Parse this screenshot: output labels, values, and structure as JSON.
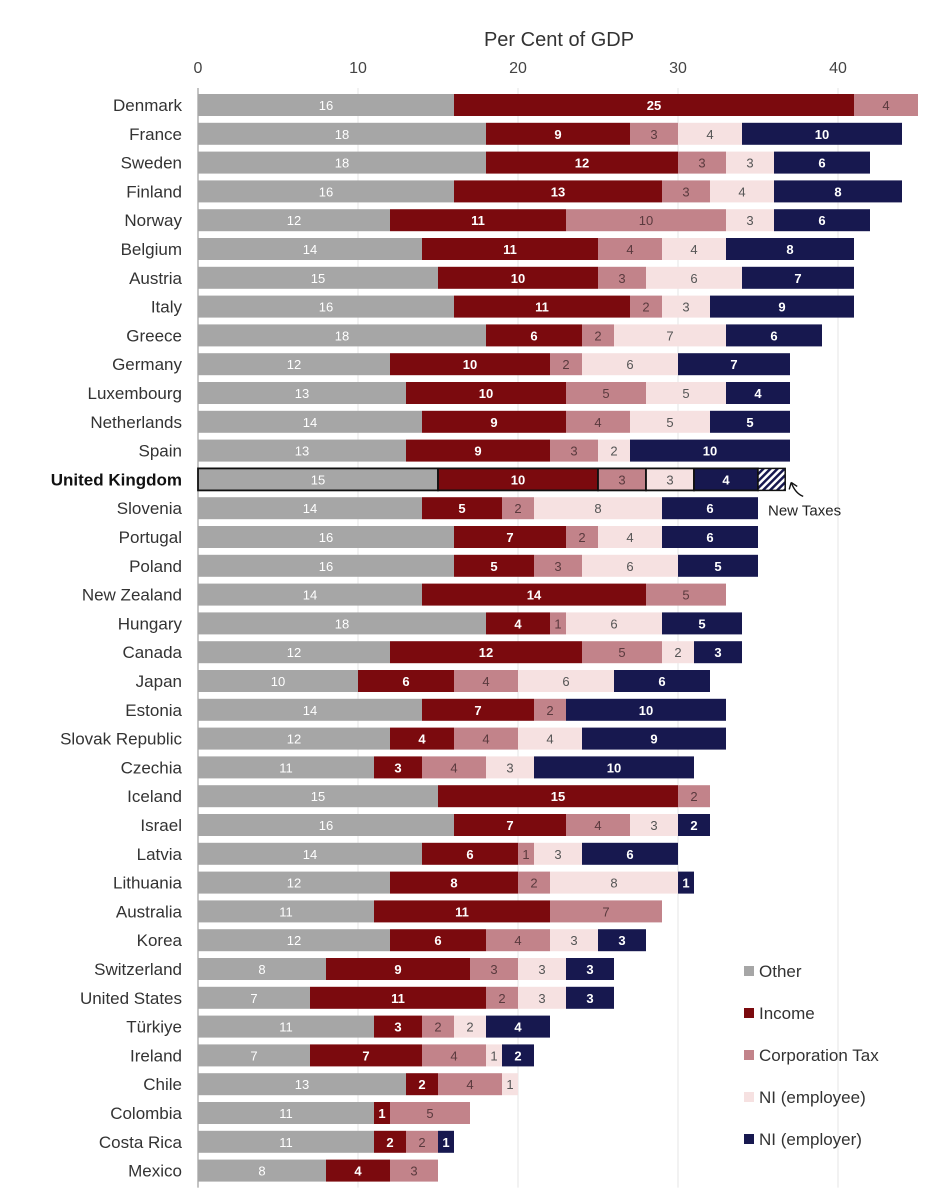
{
  "chart_data": {
    "type": "bar",
    "orientation": "horizontal",
    "stacked": true,
    "title": "Per Cent of GDP",
    "xlim": [
      0,
      45
    ],
    "xticks": [
      0,
      10,
      20,
      30,
      40
    ],
    "grid": true,
    "legend_position": "bottom-right",
    "highlight_category": "United Kingdom",
    "annotation": {
      "text": "New Taxes",
      "category": "United Kingdom",
      "value": 2
    },
    "series": [
      {
        "name": "Other",
        "color": "#a6a6a6",
        "label_color": "#ffffff"
      },
      {
        "name": "Income",
        "color": "#7b0a0e",
        "label_color": "#ffffff"
      },
      {
        "name": "Corporation Tax",
        "color": "#c2838a",
        "label_color": "#5a3a3e"
      },
      {
        "name": "NI (employee)",
        "color": "#f6e1e1",
        "label_color": "#555555"
      },
      {
        "name": "NI (employer)",
        "color": "#17184f",
        "label_color": "#ffffff"
      }
    ],
    "rows": [
      {
        "category": "Denmark",
        "values": [
          16,
          25,
          4,
          0,
          0
        ]
      },
      {
        "category": "France",
        "values": [
          18,
          9,
          3,
          4,
          10
        ]
      },
      {
        "category": "Sweden",
        "values": [
          18,
          12,
          3,
          3,
          6
        ]
      },
      {
        "category": "Finland",
        "values": [
          16,
          13,
          3,
          4,
          8
        ]
      },
      {
        "category": "Norway",
        "values": [
          12,
          11,
          10,
          3,
          6
        ]
      },
      {
        "category": "Belgium",
        "values": [
          14,
          11,
          4,
          4,
          8
        ]
      },
      {
        "category": "Austria",
        "values": [
          15,
          10,
          3,
          6,
          7
        ]
      },
      {
        "category": "Italy",
        "values": [
          16,
          11,
          2,
          3,
          9
        ]
      },
      {
        "category": "Greece",
        "values": [
          18,
          6,
          2,
          7,
          6
        ]
      },
      {
        "category": "Germany",
        "values": [
          12,
          10,
          2,
          6,
          7
        ]
      },
      {
        "category": "Luxembourg",
        "values": [
          13,
          10,
          5,
          5,
          4
        ]
      },
      {
        "category": "Netherlands",
        "values": [
          14,
          9,
          4,
          5,
          5
        ]
      },
      {
        "category": "Spain",
        "values": [
          13,
          9,
          3,
          2,
          10
        ]
      },
      {
        "category": "United Kingdom",
        "values": [
          15,
          10,
          3,
          3,
          4
        ]
      },
      {
        "category": "Slovenia",
        "values": [
          14,
          5,
          2,
          8,
          6
        ]
      },
      {
        "category": "Portugal",
        "values": [
          16,
          7,
          2,
          4,
          6
        ]
      },
      {
        "category": "Poland",
        "values": [
          16,
          5,
          3,
          6,
          5
        ]
      },
      {
        "category": "New Zealand",
        "values": [
          14,
          14,
          5,
          0,
          0
        ]
      },
      {
        "category": "Hungary",
        "values": [
          18,
          4,
          1,
          6,
          5
        ]
      },
      {
        "category": "Canada",
        "values": [
          12,
          12,
          5,
          2,
          3
        ]
      },
      {
        "category": "Japan",
        "values": [
          10,
          6,
          4,
          6,
          6
        ]
      },
      {
        "category": "Estonia",
        "values": [
          14,
          7,
          2,
          0,
          10
        ]
      },
      {
        "category": "Slovak Republic",
        "values": [
          12,
          4,
          4,
          4,
          9
        ]
      },
      {
        "category": "Czechia",
        "values": [
          11,
          3,
          4,
          3,
          10
        ]
      },
      {
        "category": "Iceland",
        "values": [
          15,
          15,
          2,
          0,
          0
        ]
      },
      {
        "category": "Israel",
        "values": [
          16,
          7,
          4,
          3,
          2
        ]
      },
      {
        "category": "Latvia",
        "values": [
          14,
          6,
          1,
          3,
          6
        ]
      },
      {
        "category": "Lithuania",
        "values": [
          12,
          8,
          2,
          8,
          1
        ]
      },
      {
        "category": "Australia",
        "values": [
          11,
          11,
          7,
          0,
          0
        ]
      },
      {
        "category": "Korea",
        "values": [
          12,
          6,
          4,
          3,
          3
        ]
      },
      {
        "category": "Switzerland",
        "values": [
          8,
          9,
          3,
          3,
          3
        ]
      },
      {
        "category": "United States",
        "values": [
          7,
          11,
          2,
          3,
          3
        ]
      },
      {
        "category": "Türkiye",
        "values": [
          11,
          3,
          2,
          2,
          4
        ]
      },
      {
        "category": "Ireland",
        "values": [
          7,
          7,
          4,
          1,
          2
        ]
      },
      {
        "category": "Chile",
        "values": [
          13,
          2,
          4,
          1,
          0
        ]
      },
      {
        "category": "Colombia",
        "values": [
          11,
          1,
          5,
          0,
          0
        ]
      },
      {
        "category": "Costa Rica",
        "values": [
          11,
          2,
          2,
          0,
          1
        ]
      },
      {
        "category": "Mexico",
        "values": [
          8,
          4,
          3,
          0,
          0
        ]
      }
    ]
  }
}
